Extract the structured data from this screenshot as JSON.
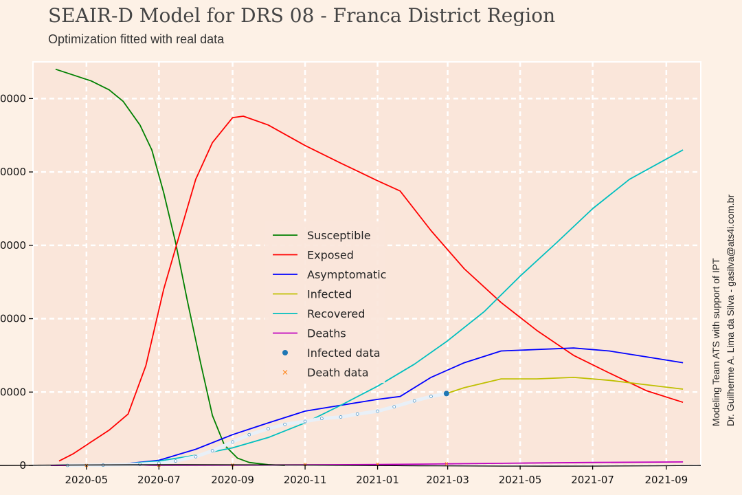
{
  "title": "SEAIR-D Model for DRS 08 - Franca District Region",
  "subtitle": "Optimization fitted with real data",
  "credits": [
    "Modeling Team ATS with support of IPT",
    "Dr. Guilherme A. Lima da Silva - gasilva@ats4i.com.br"
  ],
  "colors": {
    "background": "#fdf1e6",
    "plot_background": "#fae6da",
    "grid": "#ffffff"
  },
  "chart_data": {
    "type": "line",
    "title": "SEAIR-D Model for DRS 08 - Franca District Region",
    "subtitle": "Optimization fitted with real data",
    "xlabel": "",
    "ylabel": "",
    "x_axis_type": "date",
    "xlim": [
      "2020-03-17",
      "2021-09-30"
    ],
    "ylim": [
      0,
      27500
    ],
    "x_ticks": [
      "2020-05",
      "2020-07",
      "2020-09",
      "2020-11",
      "2021-01",
      "2021-03",
      "2021-05",
      "2021-07",
      "2021-09"
    ],
    "x_tick_dates": [
      "2020-05-01",
      "2020-07-01",
      "2020-09-01",
      "2020-11-01",
      "2021-01-01",
      "2021-03-01",
      "2021-05-01",
      "2021-07-01",
      "2021-09-01"
    ],
    "y_ticks": [
      0,
      5000,
      10000,
      15000,
      20000,
      25000
    ],
    "y_tick_labels": [
      "0",
      "0000",
      "0000",
      "0000",
      "0000",
      "0000"
    ],
    "grid": true,
    "legend_position": "center",
    "series": [
      {
        "name": "Susceptible",
        "color": "#008000",
        "x": [
          "2020-04-05",
          "2020-04-20",
          "2020-05-05",
          "2020-05-20",
          "2020-06-01",
          "2020-06-15",
          "2020-06-25",
          "2020-07-05",
          "2020-07-15",
          "2020-07-25",
          "2020-08-05",
          "2020-08-15",
          "2020-08-25",
          "2020-09-05",
          "2020-09-15",
          "2020-10-01",
          "2020-10-15"
        ],
        "y": [
          27000,
          26600,
          26200,
          25600,
          24800,
          23200,
          21500,
          18600,
          15200,
          11200,
          7000,
          3400,
          1400,
          500,
          200,
          50,
          0
        ]
      },
      {
        "name": "Exposed",
        "color": "#ff0000",
        "x": [
          "2020-04-08",
          "2020-04-20",
          "2020-05-05",
          "2020-05-20",
          "2020-06-05",
          "2020-06-20",
          "2020-07-05",
          "2020-07-20",
          "2020-08-01",
          "2020-08-15",
          "2020-09-01",
          "2020-09-10",
          "2020-10-01",
          "2020-11-01",
          "2020-12-01",
          "2021-01-01",
          "2021-01-20",
          "2021-02-15",
          "2021-03-15",
          "2021-04-15",
          "2021-05-15",
          "2021-06-15",
          "2021-07-15",
          "2021-08-15",
          "2021-09-15"
        ],
        "y": [
          300,
          800,
          1600,
          2400,
          3500,
          6800,
          12000,
          16200,
          19500,
          22000,
          23700,
          23800,
          23200,
          21800,
          20600,
          19400,
          18700,
          16000,
          13400,
          11100,
          9200,
          7500,
          6300,
          5100,
          4300
        ]
      },
      {
        "name": "Asymptomatic",
        "color": "#0000ff",
        "x": [
          "2020-04-01",
          "2020-06-01",
          "2020-07-01",
          "2020-08-01",
          "2020-09-01",
          "2020-10-01",
          "2020-11-01",
          "2020-12-01",
          "2021-01-01",
          "2021-01-20",
          "2021-02-15",
          "2021-03-15",
          "2021-04-15",
          "2021-05-15",
          "2021-06-15",
          "2021-07-15",
          "2021-08-15",
          "2021-09-15"
        ],
        "y": [
          0,
          100,
          350,
          1100,
          2100,
          2900,
          3700,
          4100,
          4500,
          4700,
          6000,
          7000,
          7800,
          7900,
          8000,
          7800,
          7400,
          7000
        ]
      },
      {
        "name": "Infected",
        "color": "#bfbf00",
        "x": [
          "2021-02-28",
          "2021-03-15",
          "2021-04-15",
          "2021-05-15",
          "2021-06-15",
          "2021-07-15",
          "2021-08-15",
          "2021-09-15"
        ],
        "y": [
          4900,
          5300,
          5900,
          5900,
          6000,
          5800,
          5500,
          5200
        ]
      },
      {
        "name": "Recovered",
        "color": "#00bfbf",
        "x": [
          "2020-04-01",
          "2020-06-01",
          "2020-07-01",
          "2020-08-01",
          "2020-09-01",
          "2020-10-01",
          "2020-11-01",
          "2020-12-01",
          "2021-01-01",
          "2021-02-01",
          "2021-03-01",
          "2021-04-01",
          "2021-05-01",
          "2021-06-01",
          "2021-07-01",
          "2021-08-01",
          "2021-09-15"
        ],
        "y": [
          0,
          100,
          300,
          700,
          1200,
          1900,
          2900,
          4100,
          5400,
          6900,
          8500,
          10500,
          12900,
          15200,
          17500,
          19500,
          21500
        ]
      },
      {
        "name": "Deaths",
        "color": "#bf00bf",
        "x": [
          "2020-04-01",
          "2020-09-01",
          "2021-01-01",
          "2021-03-01",
          "2021-05-01",
          "2021-07-01",
          "2021-09-15"
        ],
        "y": [
          0,
          20,
          60,
          110,
          160,
          200,
          240
        ]
      }
    ],
    "data_series": [
      {
        "name": "Infected data",
        "color": "#1f77b4",
        "marker": "dot",
        "x": [
          "2020-04-15",
          "2020-05-15",
          "2020-06-15",
          "2020-07-01",
          "2020-07-15",
          "2020-08-01",
          "2020-08-15",
          "2020-09-01",
          "2020-09-15",
          "2020-10-01",
          "2020-10-15",
          "2020-11-01",
          "2020-11-15",
          "2020-12-01",
          "2020-12-15",
          "2021-01-01",
          "2021-01-15",
          "2021-02-01",
          "2021-02-15",
          "2021-02-28"
        ],
        "y": [
          0,
          20,
          80,
          150,
          300,
          600,
          1000,
          1600,
          2100,
          2500,
          2800,
          3000,
          3200,
          3300,
          3500,
          3700,
          4000,
          4400,
          4700,
          4900
        ]
      },
      {
        "name": "Death data",
        "color": "#ff7f0e",
        "marker": "x",
        "x": [
          "2020-05-01",
          "2020-07-01",
          "2020-09-01",
          "2020-11-01",
          "2021-01-01",
          "2021-02-28"
        ],
        "y": [
          0,
          10,
          30,
          60,
          90,
          120
        ]
      }
    ]
  }
}
